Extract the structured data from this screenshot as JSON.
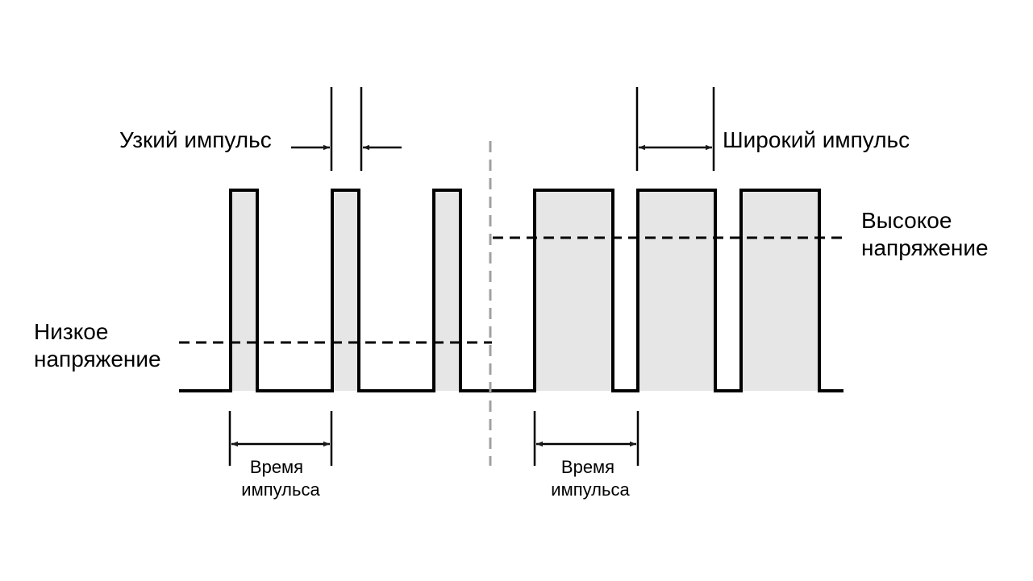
{
  "labels": {
    "narrow_pulse": "Узкий импульс",
    "wide_pulse": "Широкий импульс",
    "high_voltage_line1": "Высокое",
    "high_voltage_line2": "напряжение",
    "low_voltage_line1": "Низкое",
    "low_voltage_line2": "напряжение",
    "pulse_time_left_line1": "Время",
    "pulse_time_left_line2": "импульса",
    "pulse_time_right_line1": "Время",
    "pulse_time_right_line2": "импульса"
  },
  "colors": {
    "signal": "#000000",
    "pulse_fill": "#e6e6e6",
    "divider": "#a0a0a0"
  }
}
